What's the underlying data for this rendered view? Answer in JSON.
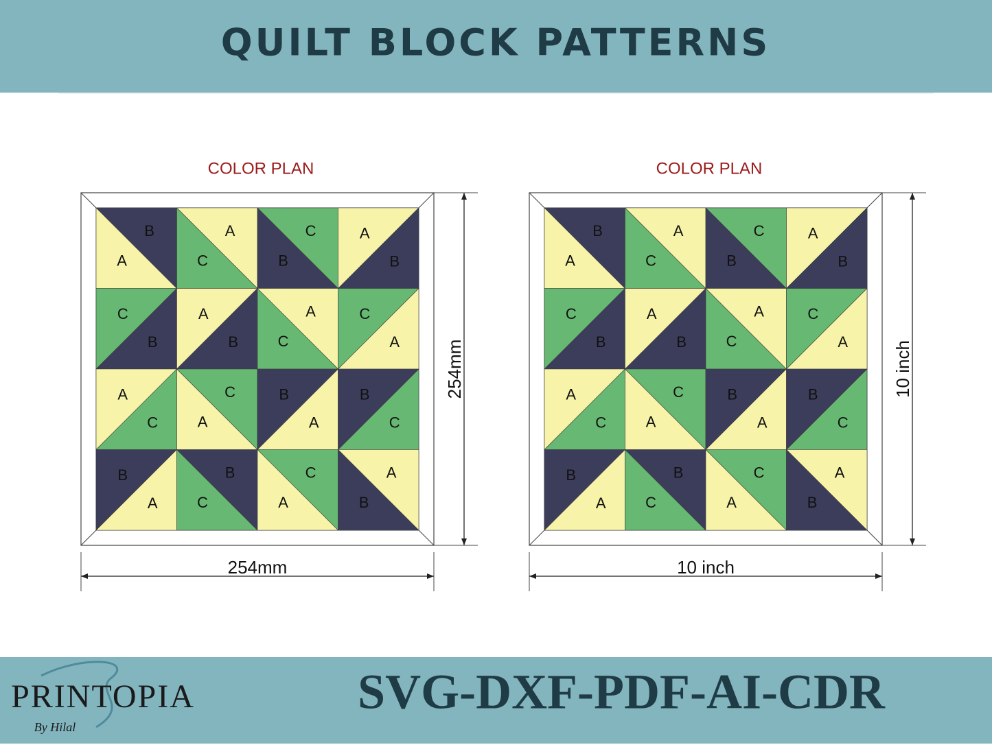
{
  "header": {
    "title": "QUILT BLOCK PATTERNS"
  },
  "colors": {
    "A": "#f7f4a9",
    "B": "#3c3d5b",
    "C": "#67b872"
  },
  "blocks": [
    {
      "title": "COLOR PLAN",
      "width_label": "254mm",
      "height_label": "254mm",
      "rows": [
        [
          {
            "split": "tl-br",
            "letters": [
              "B",
              "A"
            ]
          },
          {
            "split": "tl-br",
            "letters": [
              "A",
              "C"
            ]
          },
          {
            "split": "tl-br",
            "letters": [
              "C",
              "B"
            ]
          },
          {
            "split": "bl-tr",
            "letters": [
              "A",
              "B"
            ]
          }
        ],
        [
          {
            "split": "bl-tr",
            "letters": [
              "C",
              "B"
            ]
          },
          {
            "split": "bl-tr",
            "letters": [
              "A",
              "B"
            ]
          },
          {
            "split": "tl-br",
            "letters": [
              "A",
              "C"
            ]
          },
          {
            "split": "bl-tr",
            "letters": [
              "C",
              "A"
            ]
          }
        ],
        [
          {
            "split": "bl-tr",
            "letters": [
              "A",
              "C"
            ]
          },
          {
            "split": "tl-br",
            "letters": [
              "C",
              "A"
            ]
          },
          {
            "split": "bl-tr",
            "letters": [
              "B",
              "A"
            ]
          },
          {
            "split": "bl-tr",
            "letters": [
              "B",
              "C"
            ]
          }
        ],
        [
          {
            "split": "bl-tr",
            "letters": [
              "B",
              "A"
            ]
          },
          {
            "split": "tl-br",
            "letters": [
              "B",
              "C"
            ]
          },
          {
            "split": "tl-br",
            "letters": [
              "C",
              "A"
            ]
          },
          {
            "split": "tl-br",
            "letters": [
              "A",
              "B"
            ]
          }
        ]
      ]
    },
    {
      "title": "COLOR PLAN",
      "width_label": "10 inch",
      "height_label": "10 inch",
      "rows": [
        [
          {
            "split": "tl-br",
            "letters": [
              "B",
              "A"
            ]
          },
          {
            "split": "tl-br",
            "letters": [
              "A",
              "C"
            ]
          },
          {
            "split": "tl-br",
            "letters": [
              "C",
              "B"
            ]
          },
          {
            "split": "bl-tr",
            "letters": [
              "A",
              "B"
            ]
          }
        ],
        [
          {
            "split": "bl-tr",
            "letters": [
              "C",
              "B"
            ]
          },
          {
            "split": "bl-tr",
            "letters": [
              "A",
              "B"
            ]
          },
          {
            "split": "tl-br",
            "letters": [
              "A",
              "C"
            ]
          },
          {
            "split": "bl-tr",
            "letters": [
              "C",
              "A"
            ]
          }
        ],
        [
          {
            "split": "bl-tr",
            "letters": [
              "A",
              "C"
            ]
          },
          {
            "split": "tl-br",
            "letters": [
              "C",
              "A"
            ]
          },
          {
            "split": "bl-tr",
            "letters": [
              "B",
              "A"
            ]
          },
          {
            "split": "bl-tr",
            "letters": [
              "B",
              "C"
            ]
          }
        ],
        [
          {
            "split": "bl-tr",
            "letters": [
              "B",
              "A"
            ]
          },
          {
            "split": "tl-br",
            "letters": [
              "B",
              "C"
            ]
          },
          {
            "split": "tl-br",
            "letters": [
              "C",
              "A"
            ]
          },
          {
            "split": "tl-br",
            "letters": [
              "A",
              "B"
            ]
          }
        ]
      ]
    }
  ],
  "footer": {
    "brand": "PRINTOPIA",
    "signature": "By Hilal",
    "formats": "SVG-DXF-PDF-AI-CDR"
  }
}
